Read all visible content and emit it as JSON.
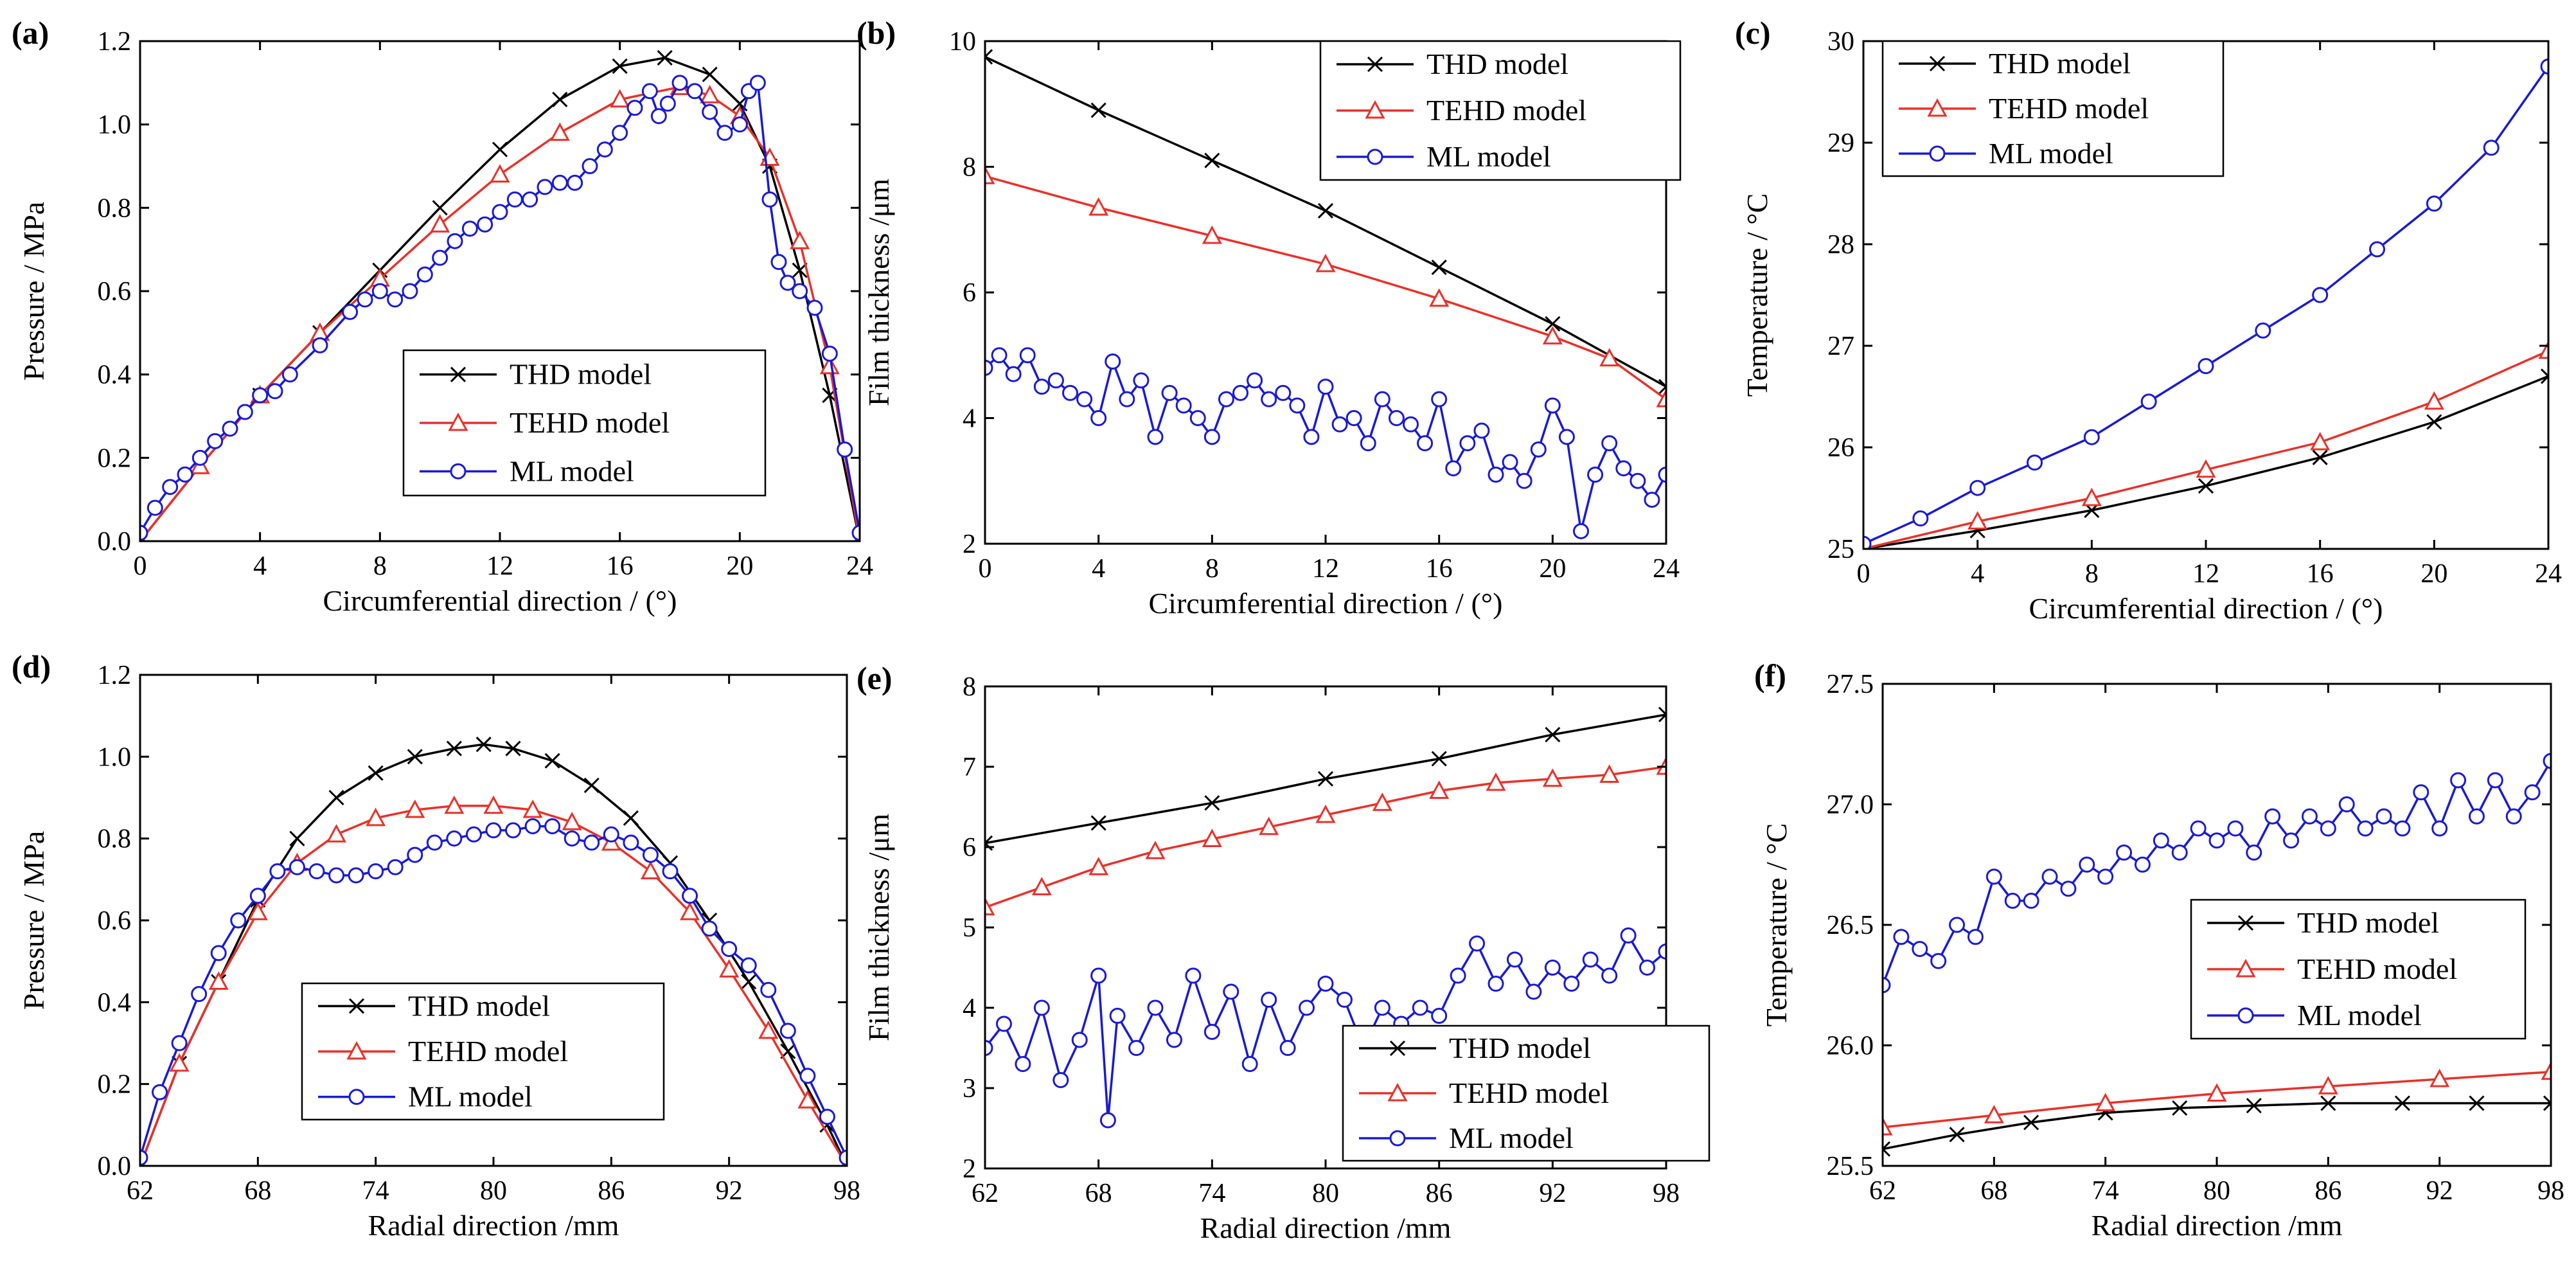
{
  "figure": {
    "series_colors": {
      "THD model": "#000000",
      "TEHD model": "#e8312a",
      "ML model": "#1a1ad4"
    },
    "marker_shapes": {
      "THD model": "cross",
      "TEHD model": "triangle",
      "ML model": "circle"
    }
  },
  "chart_data": [
    {
      "id": "a",
      "panel_label": "(a)",
      "type": "line",
      "xlabel": "Circumferential direction / (°)",
      "ylabel": "Pressure / MPa",
      "xlim": [
        0,
        24
      ],
      "ylim": [
        0,
        1.2
      ],
      "xticks": [
        0,
        4,
        8,
        12,
        16,
        20,
        24
      ],
      "xtick_labels": [
        "0",
        "4",
        "8",
        "12",
        "16",
        "20",
        "24"
      ],
      "yticks": [
        0,
        0.2,
        0.4,
        0.6,
        0.8,
        1.0,
        1.2
      ],
      "ytick_labels": [
        "0.0",
        "0.2",
        "0.4",
        "0.6",
        "0.8",
        "1.0",
        "1.2"
      ],
      "legend_position": "lower-center",
      "series": [
        {
          "name": "THD model",
          "marker": "cross",
          "x": [
            0,
            2,
            4,
            6,
            8,
            10,
            12,
            14,
            16,
            17.5,
            19,
            20,
            21,
            22,
            23,
            24
          ],
          "y": [
            0,
            0.18,
            0.35,
            0.5,
            0.65,
            0.8,
            0.94,
            1.06,
            1.14,
            1.16,
            1.12,
            1.05,
            0.9,
            0.65,
            0.35,
            0
          ]
        },
        {
          "name": "TEHD model",
          "marker": "triangle",
          "x": [
            0,
            2,
            4,
            6,
            8,
            10,
            12,
            14,
            16,
            18,
            19,
            20,
            21,
            22,
            23,
            24
          ],
          "y": [
            0,
            0.18,
            0.35,
            0.5,
            0.63,
            0.76,
            0.88,
            0.98,
            1.06,
            1.09,
            1.07,
            1.02,
            0.92,
            0.72,
            0.42,
            0
          ]
        },
        {
          "name": "ML model",
          "marker": "circle",
          "x": [
            0,
            0.5,
            1,
            1.5,
            2,
            2.5,
            3,
            3.5,
            4,
            4.5,
            5,
            6,
            7,
            7.5,
            8,
            8.5,
            9,
            9.5,
            10,
            10.5,
            11,
            11.5,
            12,
            12.5,
            13,
            13.5,
            14,
            14.5,
            15,
            15.5,
            16,
            16.5,
            17,
            17.3,
            17.6,
            18,
            18.5,
            19,
            19.5,
            20,
            20.3,
            20.6,
            21,
            21.3,
            21.6,
            22,
            22.5,
            23,
            23.5,
            24
          ],
          "y": [
            0.02,
            0.08,
            0.13,
            0.16,
            0.2,
            0.24,
            0.27,
            0.31,
            0.35,
            0.36,
            0.4,
            0.47,
            0.55,
            0.58,
            0.6,
            0.58,
            0.6,
            0.64,
            0.68,
            0.72,
            0.75,
            0.76,
            0.79,
            0.82,
            0.82,
            0.85,
            0.86,
            0.86,
            0.9,
            0.94,
            0.98,
            1.04,
            1.08,
            1.02,
            1.05,
            1.1,
            1.08,
            1.03,
            0.98,
            1.0,
            1.08,
            1.1,
            0.82,
            0.67,
            0.62,
            0.6,
            0.56,
            0.45,
            0.22,
            0.02
          ]
        }
      ]
    },
    {
      "id": "b",
      "panel_label": "(b)",
      "type": "line",
      "xlabel": "Circumferential direction / (°)",
      "ylabel": "Film thickness /μm",
      "xlim": [
        0,
        24
      ],
      "ylim": [
        2,
        10
      ],
      "xticks": [
        0,
        4,
        8,
        12,
        16,
        20,
        24
      ],
      "xtick_labels": [
        "0",
        "4",
        "8",
        "12",
        "16",
        "20",
        "24"
      ],
      "yticks": [
        2,
        4,
        6,
        8,
        10
      ],
      "ytick_labels": [
        "2",
        "4",
        "6",
        "8",
        "10"
      ],
      "legend_position": "top-right",
      "series": [
        {
          "name": "THD model",
          "marker": "cross",
          "x": [
            0,
            4,
            8,
            12,
            16,
            20,
            24
          ],
          "y": [
            9.75,
            8.9,
            8.1,
            7.3,
            6.4,
            5.5,
            4.5
          ]
        },
        {
          "name": "TEHD model",
          "marker": "triangle",
          "x": [
            0,
            4,
            8,
            12,
            16,
            20,
            22,
            24
          ],
          "y": [
            7.85,
            7.35,
            6.9,
            6.45,
            5.9,
            5.3,
            4.95,
            4.3
          ]
        },
        {
          "name": "ML model",
          "marker": "circle",
          "x": [
            0,
            0.5,
            1,
            1.5,
            2,
            2.5,
            3,
            3.5,
            4,
            4.5,
            5,
            5.5,
            6,
            6.5,
            7,
            7.5,
            8,
            8.5,
            9,
            9.5,
            10,
            10.5,
            11,
            11.5,
            12,
            12.5,
            13,
            13.5,
            14,
            14.5,
            15,
            15.5,
            16,
            16.5,
            17,
            17.5,
            18,
            18.5,
            19,
            19.5,
            20,
            20.5,
            21,
            21.5,
            22,
            22.5,
            23,
            23.5,
            24
          ],
          "y": [
            4.8,
            5.0,
            4.7,
            5.0,
            4.5,
            4.6,
            4.4,
            4.3,
            4.0,
            4.9,
            4.3,
            4.6,
            3.7,
            4.4,
            4.2,
            4.0,
            3.7,
            4.3,
            4.4,
            4.6,
            4.3,
            4.4,
            4.2,
            3.7,
            4.5,
            3.9,
            4.0,
            3.6,
            4.3,
            4.0,
            3.9,
            3.6,
            4.3,
            3.2,
            3.6,
            3.8,
            3.1,
            3.3,
            3.0,
            3.5,
            4.2,
            3.7,
            2.2,
            3.1,
            3.6,
            3.2,
            3.0,
            2.7,
            3.1
          ]
        }
      ]
    },
    {
      "id": "c",
      "panel_label": "(c)",
      "type": "line",
      "xlabel": "Circumferential direction / (°)",
      "ylabel": "Temperature / °C",
      "xlim": [
        0,
        24
      ],
      "ylim": [
        25,
        30
      ],
      "xticks": [
        0,
        4,
        8,
        12,
        16,
        20,
        24
      ],
      "xtick_labels": [
        "0",
        "4",
        "8",
        "12",
        "16",
        "20",
        "24"
      ],
      "yticks": [
        25,
        26,
        27,
        28,
        29,
        30
      ],
      "ytick_labels": [
        "25",
        "26",
        "27",
        "28",
        "29",
        "30"
      ],
      "legend_position": "top-left",
      "series": [
        {
          "name": "THD model",
          "marker": "cross",
          "x": [
            0,
            4,
            8,
            12,
            16,
            20,
            24
          ],
          "y": [
            25.0,
            25.18,
            25.38,
            25.62,
            25.9,
            26.25,
            26.7
          ]
        },
        {
          "name": "TEHD model",
          "marker": "triangle",
          "x": [
            0,
            4,
            8,
            12,
            16,
            20,
            24
          ],
          "y": [
            25.0,
            25.27,
            25.5,
            25.78,
            26.05,
            26.45,
            26.95
          ]
        },
        {
          "name": "ML model",
          "marker": "circle",
          "x": [
            0,
            2,
            4,
            6,
            8,
            10,
            12,
            14,
            16,
            18,
            20,
            22,
            24
          ],
          "y": [
            25.05,
            25.3,
            25.6,
            25.85,
            26.1,
            26.45,
            26.8,
            27.15,
            27.5,
            27.95,
            28.4,
            28.95,
            29.75
          ]
        }
      ]
    },
    {
      "id": "d",
      "panel_label": "(d)",
      "type": "line",
      "xlabel": "Radial direction /mm",
      "ylabel": "Pressure / MPa",
      "xlim": [
        62,
        98
      ],
      "ylim": [
        0,
        1.2
      ],
      "xticks": [
        62,
        68,
        74,
        80,
        86,
        92,
        98
      ],
      "xtick_labels": [
        "62",
        "68",
        "74",
        "80",
        "86",
        "92",
        "98"
      ],
      "yticks": [
        0,
        0.2,
        0.4,
        0.6,
        0.8,
        1.0,
        1.2
      ],
      "ytick_labels": [
        "0.0",
        "0.2",
        "0.4",
        "0.6",
        "0.8",
        "1.0",
        "1.2"
      ],
      "legend_position": "lower-center",
      "series": [
        {
          "name": "THD model",
          "marker": "cross",
          "x": [
            62,
            64,
            66,
            68,
            70,
            72,
            74,
            76,
            78,
            79.5,
            81,
            83,
            85,
            87,
            89,
            91,
            93,
            95,
            97,
            98
          ],
          "y": [
            0,
            0.25,
            0.45,
            0.65,
            0.8,
            0.9,
            0.96,
            1.0,
            1.02,
            1.03,
            1.02,
            0.99,
            0.93,
            0.85,
            0.74,
            0.6,
            0.45,
            0.28,
            0.1,
            0
          ]
        },
        {
          "name": "TEHD model",
          "marker": "triangle",
          "x": [
            62,
            64,
            66,
            68,
            70,
            72,
            74,
            76,
            78,
            80,
            82,
            84,
            86,
            88,
            90,
            92,
            94,
            96,
            98
          ],
          "y": [
            0,
            0.25,
            0.45,
            0.62,
            0.74,
            0.81,
            0.85,
            0.87,
            0.88,
            0.88,
            0.87,
            0.84,
            0.79,
            0.72,
            0.62,
            0.48,
            0.33,
            0.16,
            0
          ]
        },
        {
          "name": "ML model",
          "marker": "circle",
          "x": [
            62,
            63,
            64,
            65,
            66,
            67,
            68,
            69,
            70,
            71,
            72,
            73,
            74,
            75,
            76,
            77,
            78,
            79,
            80,
            81,
            82,
            83,
            84,
            85,
            86,
            87,
            88,
            89,
            90,
            91,
            92,
            93,
            94,
            95,
            96,
            97,
            98
          ],
          "y": [
            0.02,
            0.18,
            0.3,
            0.42,
            0.52,
            0.6,
            0.66,
            0.72,
            0.73,
            0.72,
            0.71,
            0.71,
            0.72,
            0.73,
            0.76,
            0.79,
            0.8,
            0.81,
            0.82,
            0.82,
            0.83,
            0.83,
            0.8,
            0.79,
            0.81,
            0.79,
            0.76,
            0.72,
            0.66,
            0.58,
            0.53,
            0.49,
            0.43,
            0.33,
            0.22,
            0.12,
            0.02
          ]
        }
      ]
    },
    {
      "id": "e",
      "panel_label": "(e)",
      "type": "line",
      "xlabel": "Radial direction /mm",
      "ylabel": "Film thickness /μm",
      "xlim": [
        62,
        98
      ],
      "ylim": [
        2,
        8
      ],
      "xticks": [
        62,
        68,
        74,
        80,
        86,
        92,
        98
      ],
      "xtick_labels": [
        "62",
        "68",
        "74",
        "80",
        "86",
        "92",
        "98"
      ],
      "yticks": [
        2,
        3,
        4,
        5,
        6,
        7,
        8
      ],
      "ytick_labels": [
        "2",
        "3",
        "4",
        "5",
        "6",
        "7",
        "8"
      ],
      "legend_position": "bottom-right",
      "series": [
        {
          "name": "THD model",
          "marker": "cross",
          "x": [
            62,
            68,
            74,
            80,
            86,
            92,
            98
          ],
          "y": [
            6.05,
            6.3,
            6.55,
            6.85,
            7.1,
            7.4,
            7.65
          ]
        },
        {
          "name": "TEHD model",
          "marker": "triangle",
          "x": [
            62,
            65,
            68,
            71,
            74,
            77,
            80,
            83,
            86,
            89,
            92,
            95,
            98
          ],
          "y": [
            5.25,
            5.5,
            5.75,
            5.95,
            6.1,
            6.25,
            6.4,
            6.55,
            6.7,
            6.8,
            6.85,
            6.9,
            7.0
          ]
        },
        {
          "name": "ML model",
          "marker": "circle",
          "x": [
            62,
            63,
            64,
            65,
            66,
            67,
            68,
            68.5,
            69,
            70,
            71,
            72,
            73,
            74,
            75,
            76,
            77,
            78,
            79,
            80,
            81,
            82,
            83,
            84,
            85,
            86,
            87,
            88,
            89,
            90,
            91,
            92,
            93,
            94,
            95,
            96,
            97,
            98
          ],
          "y": [
            3.5,
            3.8,
            3.3,
            4.0,
            3.1,
            3.6,
            4.4,
            2.6,
            3.9,
            3.5,
            4.0,
            3.6,
            4.4,
            3.7,
            4.2,
            3.3,
            4.1,
            3.5,
            4.0,
            4.3,
            4.1,
            3.5,
            4.0,
            3.8,
            4.0,
            3.9,
            4.4,
            4.8,
            4.3,
            4.6,
            4.2,
            4.5,
            4.3,
            4.6,
            4.4,
            4.9,
            4.5,
            4.7
          ]
        }
      ]
    },
    {
      "id": "f",
      "panel_label": "(f)",
      "type": "line",
      "xlabel": "Radial direction /mm",
      "ylabel": "Temperature / °C",
      "xlim": [
        62,
        98
      ],
      "ylim": [
        25.5,
        27.5
      ],
      "xticks": [
        62,
        68,
        74,
        80,
        86,
        92,
        98
      ],
      "xtick_labels": [
        "62",
        "68",
        "74",
        "80",
        "86",
        "92",
        "98"
      ],
      "yticks": [
        25.5,
        26.0,
        26.5,
        27.0,
        27.5
      ],
      "ytick_labels": [
        "25.5",
        "26.0",
        "26.5",
        "27.0",
        "27.5"
      ],
      "legend_position": "right",
      "series": [
        {
          "name": "THD model",
          "marker": "cross",
          "x": [
            62,
            66,
            70,
            74,
            78,
            82,
            86,
            90,
            94,
            98
          ],
          "y": [
            25.57,
            25.63,
            25.68,
            25.72,
            25.74,
            25.75,
            25.76,
            25.76,
            25.76,
            25.76
          ]
        },
        {
          "name": "TEHD model",
          "marker": "triangle",
          "x": [
            62,
            68,
            74,
            80,
            86,
            92,
            98
          ],
          "y": [
            25.66,
            25.71,
            25.76,
            25.8,
            25.83,
            25.86,
            25.89
          ]
        },
        {
          "name": "ML model",
          "marker": "circle",
          "x": [
            62,
            63,
            64,
            65,
            66,
            67,
            68,
            69,
            70,
            71,
            72,
            73,
            74,
            75,
            76,
            77,
            78,
            79,
            80,
            81,
            82,
            83,
            84,
            85,
            86,
            87,
            88,
            89,
            90,
            91,
            92,
            93,
            94,
            95,
            96,
            97,
            98
          ],
          "y": [
            26.25,
            26.45,
            26.4,
            26.35,
            26.5,
            26.45,
            26.7,
            26.6,
            26.6,
            26.7,
            26.65,
            26.75,
            26.7,
            26.8,
            26.75,
            26.85,
            26.8,
            26.9,
            26.85,
            26.9,
            26.8,
            26.95,
            26.85,
            26.95,
            26.9,
            27.0,
            26.9,
            26.95,
            26.9,
            27.05,
            26.9,
            27.1,
            26.95,
            27.1,
            26.95,
            27.05,
            27.18
          ]
        }
      ]
    }
  ]
}
